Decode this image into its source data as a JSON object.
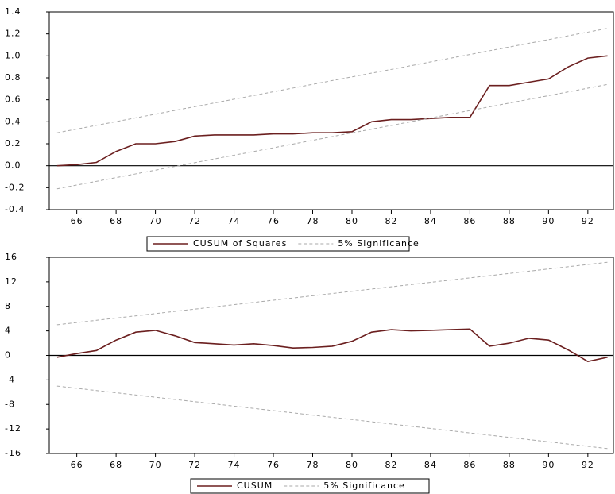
{
  "chart_data": [
    {
      "type": "line",
      "xlim": [
        64.6,
        93.3
      ],
      "xticks": [
        66,
        68,
        70,
        72,
        74,
        76,
        78,
        80,
        82,
        84,
        86,
        88,
        90,
        92
      ],
      "ylim": [
        -0.4,
        1.4
      ],
      "yticks": [
        -0.4,
        -0.2,
        {
          "value": 0,
          "label": "0.0"
        },
        0.2,
        0.4,
        0.6,
        0.8,
        {
          "value": 1,
          "label": "1.0"
        },
        1.2,
        1.4
      ],
      "series": [
        {
          "name": "CUSUM of Squares",
          "color": "#6b1f1f",
          "x": [
            65,
            66,
            67,
            68,
            69,
            70,
            71,
            72,
            73,
            74,
            75,
            76,
            77,
            78,
            79,
            80,
            81,
            82,
            83,
            84,
            85,
            86,
            87,
            88,
            89,
            90,
            91,
            92,
            93
          ],
          "values": [
            0.0,
            0.01,
            0.03,
            0.13,
            0.2,
            0.2,
            0.22,
            0.27,
            0.28,
            0.28,
            0.28,
            0.29,
            0.29,
            0.3,
            0.3,
            0.31,
            0.4,
            0.42,
            0.42,
            0.43,
            0.44,
            0.44,
            0.73,
            0.73,
            0.76,
            0.79,
            0.9,
            0.98,
            1.0
          ]
        },
        {
          "name": "5% Significance",
          "color": "#aaaaaa",
          "dashed": true,
          "x": [
            65,
            93
          ],
          "upper": [
            0.3,
            1.25
          ],
          "lower": [
            -0.21,
            0.74
          ]
        }
      ]
    },
    {
      "type": "line",
      "xlim": [
        64.6,
        93.3
      ],
      "xticks": [
        66,
        68,
        70,
        72,
        74,
        76,
        78,
        80,
        82,
        84,
        86,
        88,
        90,
        92
      ],
      "ylim": [
        -16,
        16
      ],
      "yticks": [
        -16,
        -12,
        -8,
        -4,
        0,
        4,
        8,
        12,
        16
      ],
      "series": [
        {
          "name": "CUSUM",
          "color": "#6b1f1f",
          "x": [
            65,
            66,
            67,
            68,
            69,
            70,
            71,
            72,
            73,
            74,
            75,
            76,
            77,
            78,
            79,
            80,
            81,
            82,
            83,
            84,
            85,
            86,
            87,
            88,
            89,
            90,
            91,
            92,
            93
          ],
          "values": [
            -0.3,
            0.3,
            0.8,
            2.5,
            3.8,
            4.1,
            3.2,
            2.1,
            1.9,
            1.7,
            1.9,
            1.6,
            1.2,
            1.3,
            1.5,
            2.3,
            3.8,
            4.2,
            4.0,
            4.1,
            4.2,
            4.3,
            1.5,
            2.0,
            2.8,
            2.5,
            0.9,
            -1.0,
            -0.3
          ]
        },
        {
          "name": "5% Significance",
          "color": "#aaaaaa",
          "dashed": true,
          "x": [
            65,
            93
          ],
          "upper": [
            5.0,
            15.2
          ],
          "lower": [
            -5.0,
            -15.2
          ]
        }
      ]
    }
  ]
}
